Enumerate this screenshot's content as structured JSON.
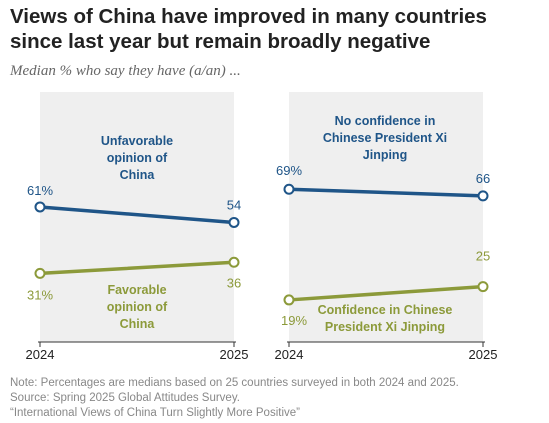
{
  "title": "Views of China have improved in many countries since last year but remain broadly negative",
  "subtitle": "Median % who say they have (a/an) ...",
  "notes": {
    "note": "Note: Percentages are medians based on 25 countries surveyed in both 2024 and 2025.",
    "source": "Source: Spring 2025 Global Attitudes Survey.",
    "report": "“International Views of China Turn Slightly More Positive”"
  },
  "colors": {
    "negative": "#1f5588",
    "positive": "#8c9a3a",
    "panel": "#efefef",
    "axis": "#333333"
  },
  "chart_data": [
    {
      "type": "line",
      "x": [
        "2024",
        "2025"
      ],
      "ylim": [
        0,
        100
      ],
      "grid": false,
      "series": [
        {
          "name": "Unfavorable opinion of China",
          "label_lines": [
            "Unfavorable",
            "opinion of",
            "China"
          ],
          "values": [
            61,
            54
          ],
          "value_labels": [
            "61%",
            "54"
          ],
          "color": "#1f5588"
        },
        {
          "name": "Favorable opinion of China",
          "label_lines": [
            "Favorable",
            "opinion of",
            "China"
          ],
          "values": [
            31,
            36
          ],
          "value_labels": [
            "31%",
            "36"
          ],
          "color": "#8c9a3a"
        }
      ]
    },
    {
      "type": "line",
      "x": [
        "2024",
        "2025"
      ],
      "ylim": [
        0,
        100
      ],
      "grid": false,
      "series": [
        {
          "name": "No confidence in Chinese President Xi Jinping",
          "label_lines": [
            "No confidence in",
            "Chinese President Xi",
            "Jinping"
          ],
          "values": [
            69,
            66
          ],
          "value_labels": [
            "69%",
            "66"
          ],
          "color": "#1f5588"
        },
        {
          "name": "Confidence in Chinese President Xi Jinping",
          "label_lines": [
            "Confidence in Chinese",
            "President Xi Jinping"
          ],
          "values": [
            19,
            25
          ],
          "value_labels": [
            "19%",
            "25"
          ],
          "color": "#8c9a3a"
        }
      ]
    }
  ]
}
